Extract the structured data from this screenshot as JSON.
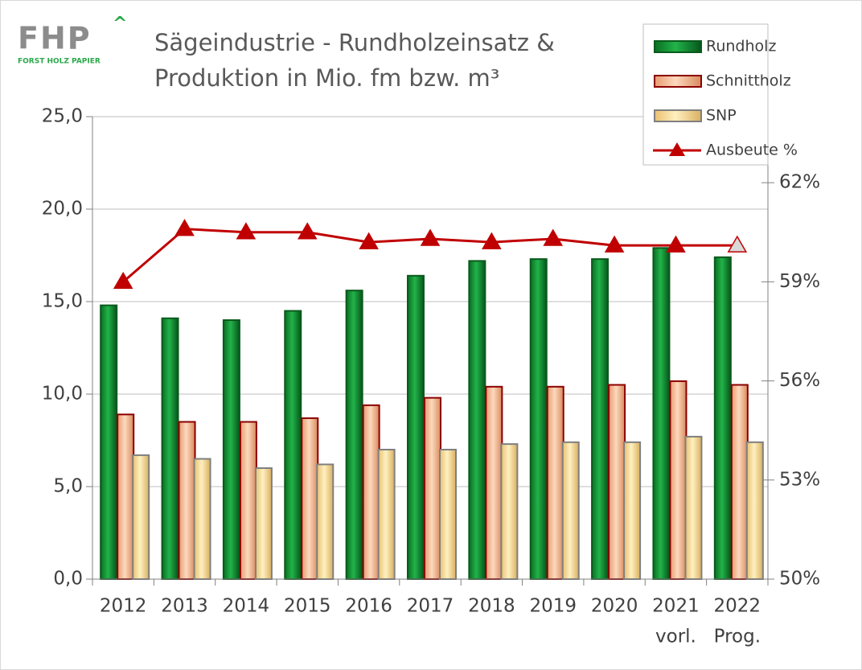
{
  "logo": {
    "mark": "FHP",
    "subtitle": "FORST HOLZ PAPIER"
  },
  "chart_data": {
    "type": "bar",
    "title": [
      "Sägeindustrie - Rundholzeinsatz &",
      "Produktion in Mio. fm bzw. m³"
    ],
    "categories": [
      "2012",
      "2013",
      "2014",
      "2015",
      "2016",
      "2017",
      "2018",
      "2019",
      "2020",
      "2021",
      "2022"
    ],
    "category_sublabels": [
      null,
      null,
      null,
      null,
      null,
      null,
      null,
      null,
      null,
      "vorl.",
      "Prog."
    ],
    "series": [
      {
        "name": "Rundholz",
        "color": "#0b8a2c",
        "values": [
          14.8,
          14.1,
          14.0,
          14.5,
          15.6,
          16.4,
          17.2,
          17.3,
          17.3,
          17.9,
          17.4
        ]
      },
      {
        "name": "Schnittholz",
        "color": "#f4b183",
        "values": [
          8.9,
          8.5,
          8.5,
          8.7,
          9.4,
          9.8,
          10.4,
          10.4,
          10.5,
          10.7,
          10.5
        ]
      },
      {
        "name": "SNP",
        "color": "#ffd98a",
        "values": [
          6.7,
          6.5,
          6.0,
          6.2,
          7.0,
          7.0,
          7.3,
          7.4,
          7.4,
          7.7,
          7.4
        ]
      },
      {
        "name": "Ausbeute %",
        "type": "line",
        "axis": "y2",
        "color": "#c00000",
        "values": [
          59.0,
          60.6,
          60.5,
          60.5,
          60.2,
          60.3,
          60.2,
          60.3,
          60.1,
          60.1,
          60.1
        ]
      }
    ],
    "ylim": [
      0,
      25
    ],
    "yticks": [
      {
        "value": 0,
        "label": "0,0"
      },
      {
        "value": 5,
        "label": "5,0"
      },
      {
        "value": 10,
        "label": "10,0"
      },
      {
        "value": 15,
        "label": "15,0"
      },
      {
        "value": 20,
        "label": "20,0"
      },
      {
        "value": 25,
        "label": "25,0"
      }
    ],
    "y2lim": [
      50,
      64
    ],
    "y2ticks": [
      {
        "value": 50,
        "label": "50%"
      },
      {
        "value": 53,
        "label": "53%"
      },
      {
        "value": 56,
        "label": "56%"
      },
      {
        "value": 59,
        "label": "59%"
      },
      {
        "value": 62,
        "label": "62%"
      }
    ],
    "grid": true,
    "legend": "top-right"
  }
}
